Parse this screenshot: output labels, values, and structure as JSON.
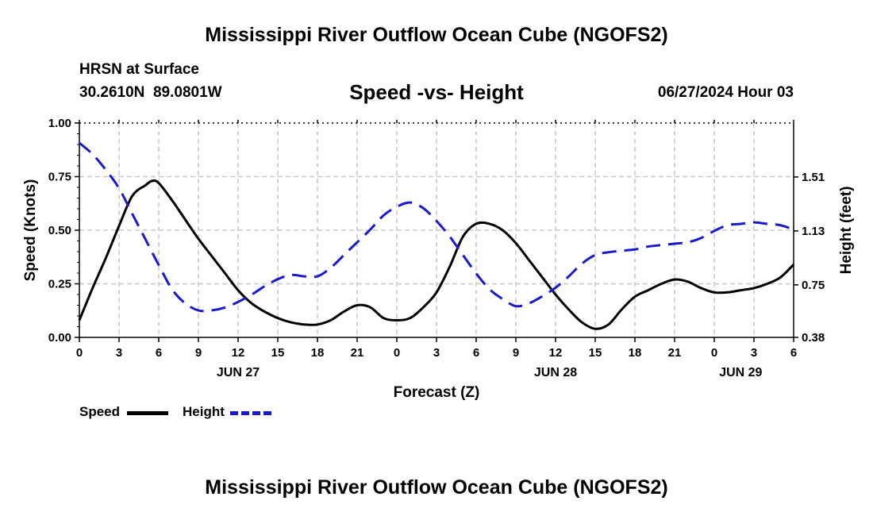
{
  "header": {
    "title": "Mississippi River Outflow Ocean Cube (NGOFS2)",
    "station": "HRSN at Surface",
    "latlon": "30.2610N  89.0801W",
    "subtitle": "Speed -vs- Height",
    "date": "06/27/2024 Hour 03",
    "bottom_title": "Mississippi River Outflow Ocean Cube (NGOFS2)"
  },
  "legend": {
    "speed_label": "Speed",
    "height_label": "Height"
  },
  "colors": {
    "speed": "#000000",
    "height": "#1a1acc",
    "grid": "#c8c8c8"
  },
  "chart_data": {
    "type": "line",
    "title": "Speed -vs- Height",
    "xlabel": "Forecast (Z)",
    "ylabel": "Speed (Knots)",
    "y2label": "Height (feet)",
    "x_range_hours": [
      0,
      54
    ],
    "x_tick_labels": [
      "0",
      "3",
      "6",
      "9",
      "12",
      "15",
      "18",
      "21",
      "0",
      "3",
      "6",
      "9",
      "12",
      "15",
      "18",
      "21",
      "0",
      "3",
      "6"
    ],
    "date_labels": [
      {
        "hour": 12,
        "label": "JUN 27"
      },
      {
        "hour": 36,
        "label": "JUN 28"
      },
      {
        "hour": 50,
        "label": "JUN 29"
      }
    ],
    "ylim": [
      0,
      1.0
    ],
    "y_tick_labels": [
      "0.00",
      "0.25",
      "0.50",
      "0.75",
      "1.00"
    ],
    "y2lim": [
      0.38,
      1.89
    ],
    "y2_tick_values": [
      0.38,
      0.75,
      1.13,
      1.51
    ],
    "y2_tick_labels": [
      "0.38",
      "0.75",
      "1.13",
      "1.51"
    ],
    "series": [
      {
        "name": "Speed",
        "axis": "left",
        "style": "solid",
        "x": [
          0,
          1,
          2,
          3,
          4,
          5,
          5.5,
          6,
          7,
          8,
          9,
          10,
          11,
          12,
          13,
          14,
          15,
          16,
          17,
          18,
          19,
          20,
          21,
          22,
          23,
          24,
          25,
          26,
          27,
          28,
          29,
          30,
          31,
          32,
          33,
          34,
          35,
          36,
          37,
          38,
          39,
          40,
          41,
          42,
          43,
          44,
          45,
          46,
          47,
          48,
          49,
          50,
          51,
          52,
          53,
          54
        ],
        "values": [
          0.08,
          0.23,
          0.37,
          0.52,
          0.66,
          0.71,
          0.73,
          0.72,
          0.64,
          0.55,
          0.46,
          0.38,
          0.3,
          0.22,
          0.16,
          0.12,
          0.09,
          0.07,
          0.06,
          0.06,
          0.08,
          0.12,
          0.15,
          0.14,
          0.09,
          0.08,
          0.09,
          0.14,
          0.21,
          0.33,
          0.47,
          0.53,
          0.53,
          0.5,
          0.44,
          0.36,
          0.28,
          0.2,
          0.13,
          0.07,
          0.04,
          0.06,
          0.13,
          0.19,
          0.22,
          0.25,
          0.27,
          0.26,
          0.23,
          0.21,
          0.21,
          0.22,
          0.23,
          0.25,
          0.28,
          0.34
        ]
      },
      {
        "name": "Height",
        "axis": "right",
        "style": "dashed",
        "x": [
          0,
          1,
          2,
          3,
          4,
          5,
          6,
          7,
          8,
          9,
          10,
          11,
          12,
          13,
          14,
          15,
          16,
          17,
          18,
          19,
          20,
          21,
          22,
          23,
          24,
          25,
          26,
          27,
          28,
          29,
          30,
          31,
          32,
          33,
          34,
          35,
          36,
          37,
          38,
          39,
          40,
          41,
          42,
          43,
          44,
          45,
          46,
          47,
          48,
          49,
          50,
          51,
          52,
          53,
          54
        ],
        "values": [
          1.75,
          1.67,
          1.56,
          1.43,
          1.25,
          1.07,
          0.89,
          0.72,
          0.62,
          0.57,
          0.57,
          0.59,
          0.63,
          0.68,
          0.74,
          0.79,
          0.82,
          0.81,
          0.81,
          0.87,
          0.96,
          1.05,
          1.14,
          1.24,
          1.3,
          1.33,
          1.29,
          1.2,
          1.09,
          0.96,
          0.83,
          0.72,
          0.65,
          0.6,
          0.62,
          0.67,
          0.73,
          0.81,
          0.9,
          0.96,
          0.98,
          0.99,
          1.0,
          1.02,
          1.03,
          1.04,
          1.05,
          1.08,
          1.13,
          1.17,
          1.18,
          1.19,
          1.18,
          1.17,
          1.14
        ]
      }
    ]
  }
}
